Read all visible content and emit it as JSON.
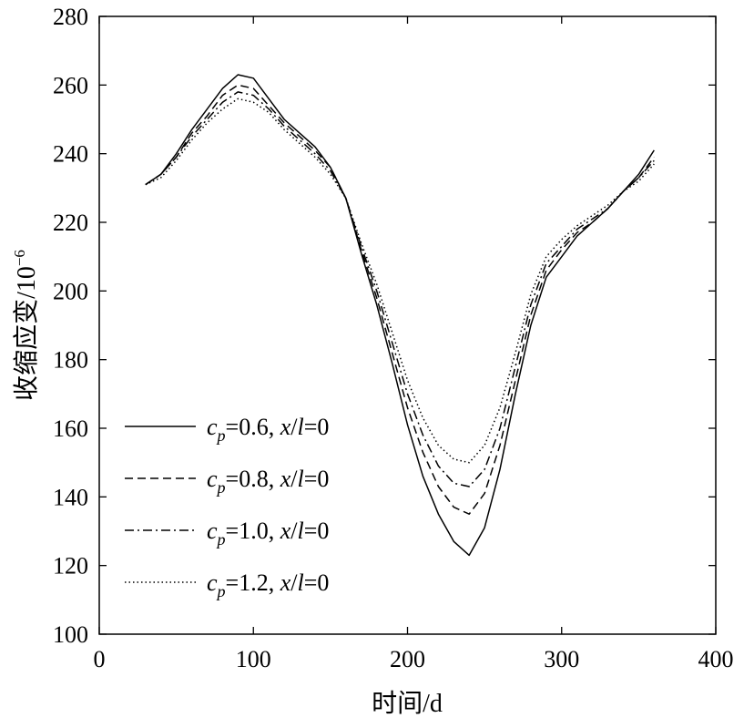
{
  "chart_data": {
    "type": "line",
    "xlabel": "时间/d",
    "ylabel": "收缩应变/10",
    "ylabel_exp": "−6",
    "xlim": [
      0,
      400
    ],
    "ylim": [
      100,
      280
    ],
    "xticks": [
      0,
      100,
      200,
      300,
      400
    ],
    "yticks": [
      100,
      120,
      140,
      160,
      180,
      200,
      220,
      240,
      260,
      280
    ],
    "grid": false,
    "legend_position": "left-bottom",
    "x": [
      30,
      40,
      50,
      60,
      70,
      80,
      90,
      100,
      110,
      120,
      130,
      140,
      150,
      160,
      170,
      180,
      190,
      200,
      210,
      220,
      230,
      240,
      250,
      260,
      270,
      280,
      290,
      300,
      310,
      320,
      330,
      340,
      350,
      360
    ],
    "series": [
      {
        "name": "cp=0.6, x/l=0",
        "legend": {
          "c": "c",
          "sub": "p",
          "val": "=0.6, ",
          "x": "x",
          "slash": "/",
          "l": "l",
          "tail": "=0"
        },
        "style": "solid",
        "values": [
          231,
          234,
          240,
          247,
          253,
          259,
          263,
          262,
          256,
          250,
          246,
          242,
          236,
          227,
          211,
          196,
          179,
          161,
          146,
          135,
          127,
          123,
          131,
          148,
          170,
          190,
          204,
          210,
          216,
          220,
          224,
          229,
          234,
          241
        ]
      },
      {
        "name": "cp=0.8, x/l=0",
        "legend": {
          "c": "c",
          "sub": "p",
          "val": "=0.8, ",
          "x": "x",
          "slash": "/",
          "l": "l",
          "tail": "=0"
        },
        "style": "dashed",
        "values": [
          231,
          234,
          239,
          246,
          251,
          257,
          260,
          259,
          254,
          249,
          245,
          241,
          236,
          227,
          212,
          198,
          182,
          166,
          153,
          143,
          137,
          135,
          141,
          155,
          174,
          193,
          206,
          212,
          217,
          220,
          224,
          229,
          233,
          239
        ]
      },
      {
        "name": "cp=1.0, x/l=0",
        "legend": {
          "c": "c",
          "sub": "p",
          "val": "=1.0, ",
          "x": "x",
          "slash": "/",
          "l": "l",
          "tail": "=0"
        },
        "style": "dashdot",
        "values": [
          231,
          234,
          239,
          245,
          250,
          255,
          258,
          257,
          253,
          248,
          244,
          240,
          235,
          227,
          213,
          200,
          185,
          170,
          158,
          149,
          144,
          143,
          148,
          160,
          178,
          196,
          208,
          213,
          218,
          221,
          224,
          229,
          233,
          238
        ]
      },
      {
        "name": "cp=1.2, x/l=0",
        "legend": {
          "c": "c",
          "sub": "p",
          "val": "=1.2, ",
          "x": "x",
          "slash": "/",
          "l": "l",
          "tail": "=0"
        },
        "style": "dotted",
        "values": [
          231,
          233,
          238,
          244,
          249,
          253,
          256,
          255,
          252,
          247,
          243,
          239,
          234,
          227,
          214,
          202,
          188,
          174,
          163,
          155,
          151,
          150,
          155,
          166,
          182,
          199,
          210,
          215,
          219,
          222,
          225,
          229,
          232,
          237
        ]
      }
    ]
  }
}
